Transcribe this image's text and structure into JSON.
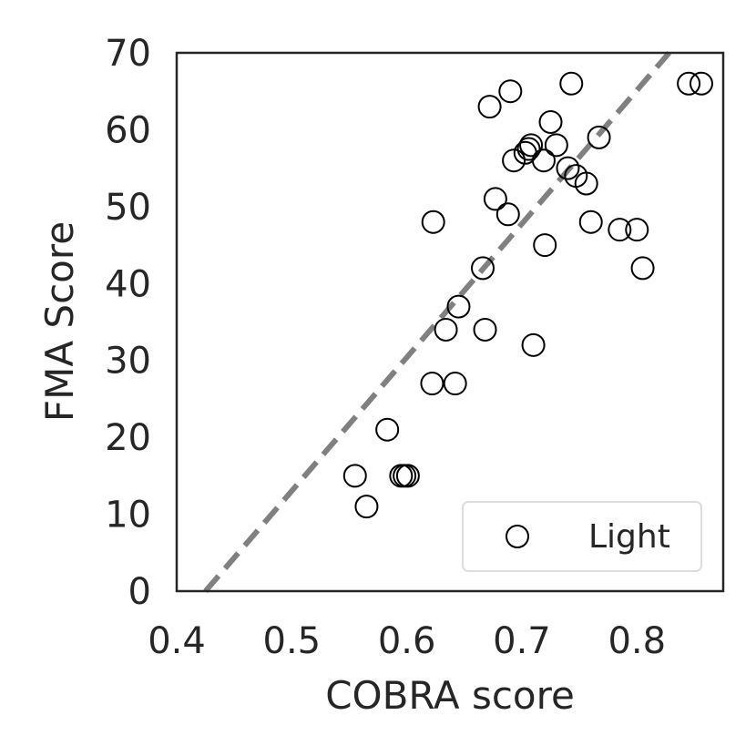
{
  "chart_data": {
    "type": "scatter",
    "title": "",
    "xlabel": "COBRA score",
    "ylabel": "FMA Score",
    "xlim": [
      0.4,
      0.875
    ],
    "ylim": [
      0,
      70
    ],
    "xticks": [
      0.4,
      0.5,
      0.6,
      0.7,
      0.8
    ],
    "xtick_labels": [
      "0.4",
      "0.5",
      "0.6",
      "0.7",
      "0.8"
    ],
    "yticks": [
      0,
      10,
      20,
      30,
      40,
      50,
      60,
      70
    ],
    "ytick_labels": [
      "0",
      "10",
      "20",
      "30",
      "40",
      "50",
      "60",
      "70"
    ],
    "grid": false,
    "legend_position": "lower-right",
    "series": [
      {
        "name": "Light",
        "marker": "open-circle",
        "color": "#000000",
        "points": [
          {
            "x": 0.555,
            "y": 15
          },
          {
            "x": 0.565,
            "y": 11
          },
          {
            "x": 0.583,
            "y": 21
          },
          {
            "x": 0.595,
            "y": 15
          },
          {
            "x": 0.598,
            "y": 15
          },
          {
            "x": 0.601,
            "y": 15
          },
          {
            "x": 0.622,
            "y": 27
          },
          {
            "x": 0.623,
            "y": 48
          },
          {
            "x": 0.634,
            "y": 34
          },
          {
            "x": 0.642,
            "y": 27
          },
          {
            "x": 0.645,
            "y": 37
          },
          {
            "x": 0.666,
            "y": 42
          },
          {
            "x": 0.668,
            "y": 34
          },
          {
            "x": 0.672,
            "y": 63
          },
          {
            "x": 0.677,
            "y": 51
          },
          {
            "x": 0.688,
            "y": 49
          },
          {
            "x": 0.69,
            "y": 65
          },
          {
            "x": 0.693,
            "y": 56
          },
          {
            "x": 0.703,
            "y": 57
          },
          {
            "x": 0.706,
            "y": 57.5
          },
          {
            "x": 0.708,
            "y": 58
          },
          {
            "x": 0.71,
            "y": 32
          },
          {
            "x": 0.719,
            "y": 56
          },
          {
            "x": 0.72,
            "y": 45
          },
          {
            "x": 0.725,
            "y": 61
          },
          {
            "x": 0.73,
            "y": 58
          },
          {
            "x": 0.74,
            "y": 55
          },
          {
            "x": 0.743,
            "y": 66
          },
          {
            "x": 0.747,
            "y": 54
          },
          {
            "x": 0.756,
            "y": 53
          },
          {
            "x": 0.76,
            "y": 48
          },
          {
            "x": 0.767,
            "y": 59
          },
          {
            "x": 0.785,
            "y": 47
          },
          {
            "x": 0.8,
            "y": 47
          },
          {
            "x": 0.805,
            "y": 42
          },
          {
            "x": 0.845,
            "y": 66
          },
          {
            "x": 0.856,
            "y": 66
          }
        ]
      }
    ],
    "reference_line": {
      "style": "dashed",
      "color": "#808080",
      "from": {
        "x": 0.425,
        "y": 0
      },
      "to": {
        "x": 0.828,
        "y": 70
      }
    }
  }
}
